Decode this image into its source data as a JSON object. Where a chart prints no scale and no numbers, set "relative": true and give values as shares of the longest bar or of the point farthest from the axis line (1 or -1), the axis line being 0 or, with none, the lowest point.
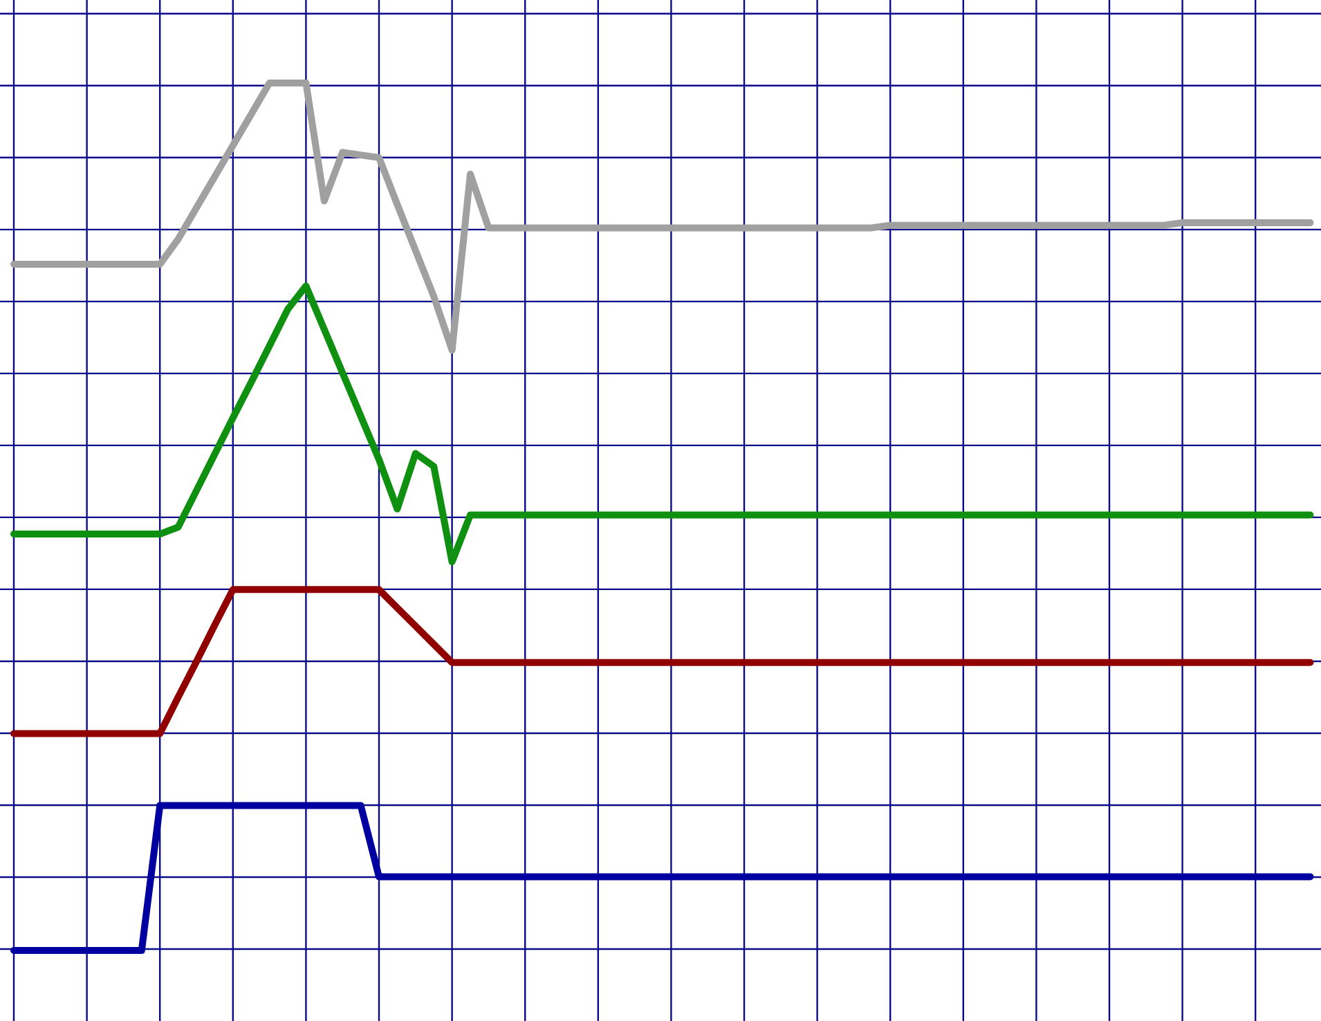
{
  "chart_data": {
    "type": "line",
    "relative": true,
    "grid": true,
    "categories": [
      null,
      null,
      null,
      null,
      null,
      null,
      null,
      null,
      null,
      null,
      null,
      null,
      null,
      null,
      null,
      null,
      null,
      null,
      null,
      null,
      null,
      null,
      null,
      null,
      null,
      null,
      null,
      null,
      null,
      null,
      null,
      null,
      null,
      null,
      null,
      null,
      null,
      null,
      null,
      null,
      null,
      null,
      null,
      null,
      null,
      null,
      null,
      null,
      null,
      null,
      null,
      null,
      null,
      null,
      null,
      null,
      null,
      null,
      null,
      null,
      null,
      null,
      null,
      null,
      null,
      null,
      null,
      null,
      null,
      null,
      null,
      null
    ],
    "series": [
      {
        "color": "#a0a0a0",
        "values": [
          0.791,
          0.791,
          0.791,
          0.791,
          0.791,
          0.791,
          0.791,
          0.791,
          0.791,
          0.82,
          0.856,
          0.892,
          0.928,
          0.964,
          1.0,
          1.0,
          1.0,
          0.864,
          0.92,
          0.917,
          0.914,
          0.86,
          0.807,
          0.754,
          0.692,
          0.895,
          0.833,
          0.833,
          0.833,
          0.833,
          0.833,
          0.833,
          0.833,
          0.833,
          0.833,
          0.833,
          0.833,
          0.833,
          0.833,
          0.833,
          0.833,
          0.833,
          0.833,
          0.833,
          0.833,
          0.833,
          0.833,
          0.833,
          0.836,
          0.836,
          0.836,
          0.836,
          0.836,
          0.836,
          0.836,
          0.836,
          0.836,
          0.836,
          0.836,
          0.836,
          0.836,
          0.836,
          0.836,
          0.836,
          0.839,
          0.839,
          0.839,
          0.839,
          0.839,
          0.839,
          0.839,
          0.839
        ]
      },
      {
        "color": "#109010",
        "values": [
          0.48,
          0.48,
          0.48,
          0.48,
          0.48,
          0.48,
          0.48,
          0.48,
          0.48,
          0.488,
          0.53,
          0.572,
          0.614,
          0.655,
          0.697,
          0.739,
          0.766,
          0.716,
          0.666,
          0.616,
          0.566,
          0.509,
          0.573,
          0.558,
          0.448,
          0.502,
          0.502,
          0.502,
          0.502,
          0.502,
          0.502,
          0.502,
          0.502,
          0.502,
          0.502,
          0.502,
          0.502,
          0.502,
          0.502,
          0.502,
          0.502,
          0.502,
          0.502,
          0.502,
          0.502,
          0.502,
          0.502,
          0.502,
          0.502,
          0.502,
          0.502,
          0.502,
          0.502,
          0.502,
          0.502,
          0.502,
          0.502,
          0.502,
          0.502,
          0.502,
          0.502,
          0.502,
          0.502,
          0.502,
          0.502,
          0.502,
          0.502,
          0.502,
          0.502,
          0.502,
          0.502,
          0.502
        ]
      },
      {
        "color": "#900000",
        "values": [
          0.25,
          0.25,
          0.25,
          0.25,
          0.25,
          0.25,
          0.25,
          0.25,
          0.25,
          0.292,
          0.333,
          0.375,
          0.416,
          0.416,
          0.416,
          0.416,
          0.416,
          0.416,
          0.416,
          0.416,
          0.416,
          0.395,
          0.374,
          0.353,
          0.332,
          0.332,
          0.332,
          0.332,
          0.332,
          0.332,
          0.332,
          0.332,
          0.332,
          0.332,
          0.332,
          0.332,
          0.332,
          0.332,
          0.332,
          0.332,
          0.332,
          0.332,
          0.332,
          0.332,
          0.332,
          0.332,
          0.332,
          0.332,
          0.332,
          0.332,
          0.332,
          0.332,
          0.332,
          0.332,
          0.332,
          0.332,
          0.332,
          0.332,
          0.332,
          0.332,
          0.332,
          0.332,
          0.332,
          0.332,
          0.332,
          0.332,
          0.332,
          0.332,
          0.332,
          0.332,
          0.332,
          0.332
        ]
      },
      {
        "color": "#0000a0",
        "values": [
          0,
          0,
          0,
          0,
          0,
          0,
          0,
          0,
          0.167,
          0.167,
          0.167,
          0.167,
          0.167,
          0.167,
          0.167,
          0.167,
          0.167,
          0.167,
          0.167,
          0.167,
          0.085,
          0.085,
          0.085,
          0.085,
          0.085,
          0.085,
          0.085,
          0.085,
          0.085,
          0.085,
          0.085,
          0.085,
          0.085,
          0.085,
          0.085,
          0.085,
          0.085,
          0.085,
          0.085,
          0.085,
          0.085,
          0.085,
          0.085,
          0.085,
          0.085,
          0.085,
          0.085,
          0.085,
          0.085,
          0.085,
          0.085,
          0.085,
          0.085,
          0.085,
          0.085,
          0.085,
          0.085,
          0.085,
          0.085,
          0.085,
          0.085,
          0.085,
          0.085,
          0.085,
          0.085,
          0.085,
          0.085,
          0.085,
          0.085,
          0.085,
          0.085,
          0.085
        ]
      }
    ]
  }
}
